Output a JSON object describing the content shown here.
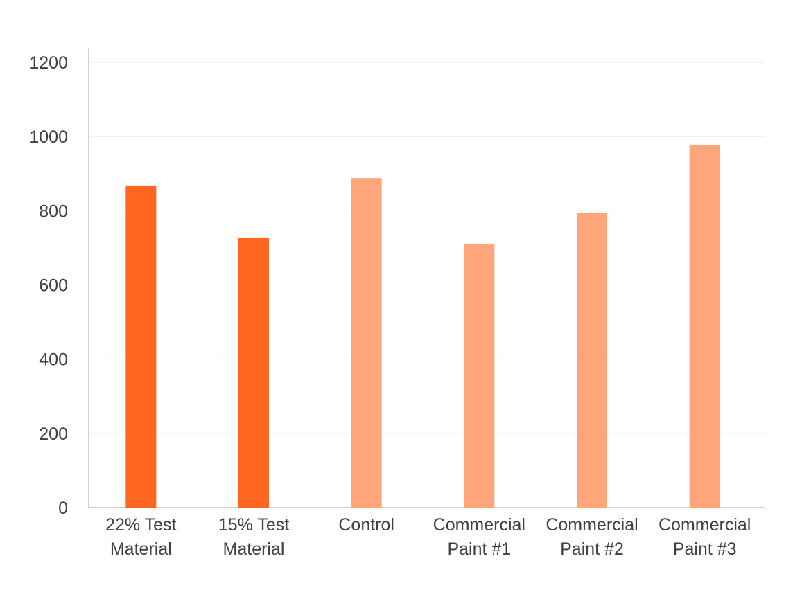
{
  "chart_data": {
    "type": "bar",
    "categories": [
      [
        "22% Test",
        "Material"
      ],
      [
        "15% Test",
        "Material"
      ],
      [
        "Control"
      ],
      [
        "Commercial",
        "Paint #1"
      ],
      [
        "Commercial",
        "Paint #2"
      ],
      [
        "Commercial",
        "Paint #3"
      ]
    ],
    "values": [
      868,
      728,
      888,
      709,
      794,
      978
    ],
    "colors": [
      "#ff6622",
      "#ff6622",
      "#ffa57a",
      "#ffa57a",
      "#ffa57a",
      "#ffa57a"
    ],
    "title": "",
    "xlabel": "",
    "ylabel": "",
    "ylim": [
      0,
      1200
    ],
    "yticks": [
      0,
      200,
      400,
      600,
      800,
      1000,
      1200
    ],
    "grid": true,
    "legend": "none"
  }
}
